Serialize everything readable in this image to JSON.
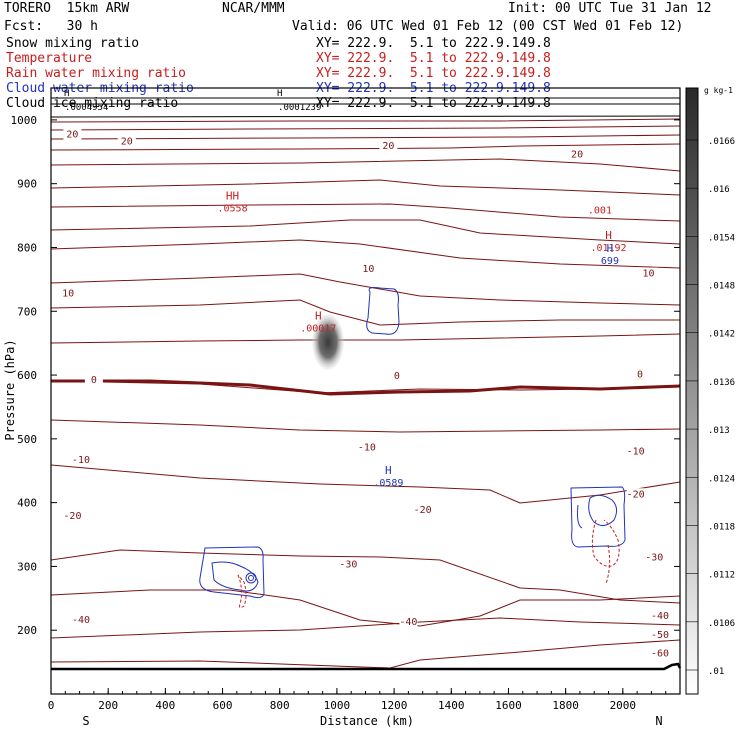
{
  "header": {
    "model": "TORERO  15km ARW",
    "org": "NCAR/MMM",
    "init": "Init: 00 UTC Tue 31 Jan 12",
    "fcst": "Fcst:   30 h",
    "valid": "Valid: 06 UTC Wed 01 Feb 12 (00 CST Wed 01 Feb 12)"
  },
  "legend": [
    {
      "name": "Snow mixing ratio",
      "xy": "XY= 222.9.  5.1 to 222.9.149.8",
      "color": "#000000"
    },
    {
      "name": "Temperature",
      "xy": "XY= 222.9.  5.1 to 222.9.149.8",
      "color": "#c81e1e"
    },
    {
      "name": "Rain water mixing ratio",
      "xy": "XY= 222.9.  5.1 to 222.9.149.8",
      "color": "#c81e1e"
    },
    {
      "name": "Cloud water mixing ratio",
      "xy": "XY= 222.9.  5.1 to 222.9.149.8",
      "color": "#2233bb"
    },
    {
      "name": "Cloud ice mixing ratio",
      "xy": "XY= 222.9.  5.1 to 222.9.149.8",
      "color": "#000000"
    }
  ],
  "chart_data": {
    "type": "cross-section",
    "xlabel": "Distance (km)",
    "ylabel": "Pressure (hPa)",
    "xlim": [
      0,
      2200
    ],
    "ylim": [
      1050,
      100
    ],
    "x_ticks": [
      0,
      200,
      400,
      600,
      800,
      1000,
      1200,
      1400,
      1600,
      1800,
      2000
    ],
    "y_ticks": [
      200,
      300,
      400,
      500,
      600,
      700,
      800,
      900,
      1000
    ],
    "x_end_labels": {
      "left": "S",
      "right": "N"
    },
    "colorbar": {
      "unit": "g kg-1",
      "levels": [
        ".01",
        ".0106",
        ".0112",
        ".0118",
        ".0124",
        ".013",
        ".0136",
        ".0142",
        ".0148",
        ".0154",
        ".016",
        ".0166"
      ]
    },
    "temperature_contour_labels": [
      {
        "text": "-60",
        "x": 2130,
        "p": 160
      },
      {
        "text": "-50",
        "x": 2130,
        "p": 189
      },
      {
        "text": "-40",
        "x": 105,
        "p": 213
      },
      {
        "text": "-40",
        "x": 1250,
        "p": 210
      },
      {
        "text": "-40",
        "x": 2130,
        "p": 219
      },
      {
        "text": "-30",
        "x": 1040,
        "p": 300
      },
      {
        "text": "-30",
        "x": 2110,
        "p": 311
      },
      {
        "text": "-20",
        "x": 75,
        "p": 376
      },
      {
        "text": "-20",
        "x": 1300,
        "p": 385
      },
      {
        "text": "-20",
        "x": 2045,
        "p": 410
      },
      {
        "text": "-10",
        "x": 105,
        "p": 464
      },
      {
        "text": "-10",
        "x": 1105,
        "p": 483
      },
      {
        "text": "-10",
        "x": 2045,
        "p": 477
      },
      {
        "text": "0",
        "x": 150,
        "p": 589
      },
      {
        "text": "0",
        "x": 1210,
        "p": 595
      },
      {
        "text": "0",
        "x": 2060,
        "p": 598
      },
      {
        "text": "10",
        "x": 60,
        "p": 725
      },
      {
        "text": "10",
        "x": 1110,
        "p": 763
      },
      {
        "text": "10",
        "x": 2090,
        "p": 756
      },
      {
        "text": "20",
        "x": 75,
        "p": 974
      },
      {
        "text": "20",
        "x": 265,
        "p": 963
      },
      {
        "text": "20",
        "x": 1180,
        "p": 956
      },
      {
        "text": "20",
        "x": 1840,
        "p": 943
      }
    ],
    "extrema_labels": [
      {
        "text": "H",
        "value": ".0589",
        "x": 1180,
        "p": 445,
        "color": "#2233bb"
      },
      {
        "text": "H",
        "value": ".00017",
        "x": 935,
        "p": 687,
        "color": "#c81e1e"
      },
      {
        "text": "H",
        "value": ".01192",
        "x": 1950,
        "p": 813,
        "color": "#c81e1e"
      },
      {
        "text": "H",
        "value": "699",
        "x": 1955,
        "p": 793,
        "color": "#2233bb"
      },
      {
        "text": "HH",
        "value": ".0558",
        "x": 635,
        "p": 875,
        "color": "#c81e1e"
      },
      {
        "text": "",
        "value": ".001",
        "x": 1920,
        "p": 872,
        "color": "#c81e1e"
      }
    ],
    "top_labels": [
      {
        "text": "H",
        "value": ".0004954",
        "x": 125,
        "color": "#000000"
      },
      {
        "text": "H",
        "value": ".0001239",
        "x": 870,
        "color": "#000000"
      }
    ]
  }
}
